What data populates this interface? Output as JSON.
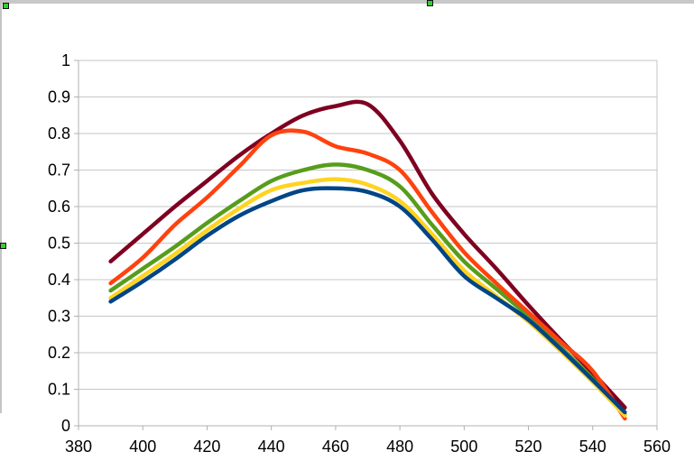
{
  "app": {
    "context": "spreadsheet-embedded-chart",
    "selection_state": "chart-object-selected",
    "selection_handle_color": "#35cc35",
    "window_edge_color": "#c8c8c8"
  },
  "chart_data": {
    "type": "line",
    "title": "",
    "xlabel": "",
    "ylabel": "",
    "xlim": [
      380,
      560
    ],
    "ylim": [
      0,
      1
    ],
    "grid": "horizontal",
    "legend": "none",
    "background": "#ffffff",
    "grid_color": "#c6c6c6",
    "axis_color": "#b0b0b0",
    "label_color": "#000000",
    "x_tick_labels": [
      "380",
      "400",
      "420",
      "440",
      "460",
      "480",
      "500",
      "520",
      "540",
      "560"
    ],
    "x_tick_values": [
      380,
      400,
      420,
      440,
      460,
      480,
      500,
      520,
      540,
      560
    ],
    "y_tick_labels": [
      "0",
      "0.1",
      "0.2",
      "0.3",
      "0.4",
      "0.5",
      "0.6",
      "0.7",
      "0.8",
      "0.9",
      "1"
    ],
    "y_tick_values": [
      0,
      0.1,
      0.2,
      0.3,
      0.4,
      0.5,
      0.6,
      0.7,
      0.8,
      0.9,
      1
    ],
    "x": [
      390,
      400,
      410,
      420,
      430,
      440,
      450,
      460,
      470,
      480,
      490,
      500,
      510,
      520,
      530,
      540,
      550
    ],
    "series": [
      {
        "name": "blue",
        "color": "#004586",
        "values": [
          0.34,
          0.395,
          0.455,
          0.52,
          0.575,
          0.615,
          0.645,
          0.65,
          0.64,
          0.6,
          0.51,
          0.41,
          0.35,
          0.29,
          0.21,
          0.125,
          0.037
        ]
      },
      {
        "name": "orange-red",
        "color": "#FF420E",
        "values": [
          0.39,
          0.46,
          0.55,
          0.625,
          0.71,
          0.795,
          0.805,
          0.765,
          0.745,
          0.7,
          0.585,
          0.475,
          0.39,
          0.31,
          0.23,
          0.15,
          0.02
        ]
      },
      {
        "name": "yellow",
        "color": "#FFD320",
        "values": [
          0.35,
          0.41,
          0.47,
          0.535,
          0.595,
          0.645,
          0.665,
          0.675,
          0.66,
          0.615,
          0.525,
          0.425,
          0.355,
          0.285,
          0.205,
          0.12,
          0.028
        ]
      },
      {
        "name": "green",
        "color": "#579D1C",
        "values": [
          0.37,
          0.43,
          0.49,
          0.555,
          0.615,
          0.67,
          0.7,
          0.715,
          0.7,
          0.655,
          0.55,
          0.45,
          0.375,
          0.3,
          0.215,
          0.13,
          0.03
        ]
      },
      {
        "name": "dark-red",
        "color": "#7E0021",
        "values": [
          0.45,
          0.525,
          0.6,
          0.67,
          0.74,
          0.8,
          0.85,
          0.875,
          0.88,
          0.78,
          0.635,
          0.525,
          0.43,
          0.33,
          0.235,
          0.145,
          0.05
        ]
      }
    ],
    "draw_order": [
      "green",
      "dark-red",
      "orange-red",
      "yellow",
      "blue"
    ],
    "line_width": 4.5
  }
}
